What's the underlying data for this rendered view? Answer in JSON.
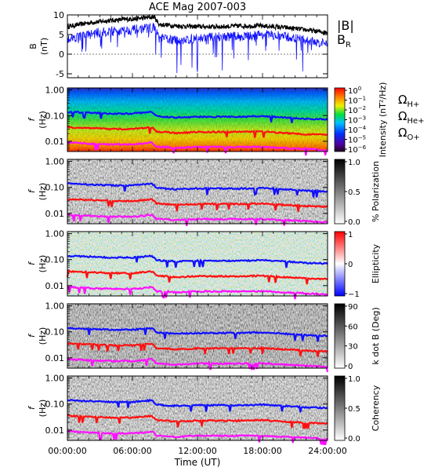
{
  "chart_data": {
    "type": "multi-panel",
    "title": "ACE Mag 2007-003",
    "xlabel": "Time (UT)",
    "x_ticks": [
      "00:00:00",
      "06:00:00",
      "12:00:00",
      "18:00:00",
      "24:00:00"
    ],
    "x_range_hours": [
      0,
      24
    ],
    "panels": [
      {
        "type": "line",
        "ylabel": "B (nT)",
        "ylim": [
          -6,
          10
        ],
        "y_ticks": [
          "10",
          "5",
          "0",
          "-5"
        ],
        "series": [
          {
            "name": "|B|",
            "color": "#000000",
            "x": [
              0,
              1,
              2,
              3,
              4,
              5,
              6,
              7,
              8,
              8.5,
              9,
              10,
              12,
              14,
              16,
              18,
              20,
              22,
              23,
              24
            ],
            "y": [
              7,
              7.5,
              8,
              8.3,
              8.6,
              8.8,
              9,
              9.2,
              9.5,
              7.5,
              7.5,
              7.2,
              7,
              7,
              7.2,
              7.2,
              6.8,
              6.2,
              5.8,
              5.5
            ]
          },
          {
            "name": "B_R",
            "color": "#1010ff",
            "x": [
              0,
              1,
              2,
              3,
              4,
              5,
              6,
              7,
              8,
              8.5,
              9,
              10,
              12,
              14,
              16,
              18,
              20,
              22,
              23,
              24
            ],
            "y": [
              4,
              4.5,
              5,
              5.5,
              5.8,
              6,
              6.2,
              6.5,
              6.8,
              4,
              4,
              3.5,
              4,
              4.5,
              4.5,
              5,
              4.5,
              3.5,
              3,
              2.5
            ]
          }
        ],
        "legend_labels": [
          "|B|",
          "B",
          "R"
        ]
      },
      {
        "type": "heatmap",
        "ylabel": "f (Hz)",
        "y_ticks": [
          "1.00",
          "0.10",
          "0.01"
        ],
        "colorbar_label": "Intensity (nT²/Hz)",
        "colorbar_ticks": [
          "10",
          "10",
          "10",
          "10",
          "10",
          "10",
          "10"
        ],
        "colorbar_exponents": [
          "0",
          "−1",
          "−2",
          "−3",
          "−4",
          "−5",
          "−6"
        ],
        "legend_labels": [
          "Ω",
          "H+",
          "Ω",
          "He+",
          "Ω",
          "O+"
        ]
      },
      {
        "type": "heatmap",
        "ylabel": "f (Hz)",
        "y_ticks": [
          "1.00",
          "0.10",
          "0.01"
        ],
        "colorbar_label": "% Polarization",
        "colorbar_ticks": [
          "1.0",
          "0.5",
          "0.0"
        ]
      },
      {
        "type": "heatmap",
        "ylabel": "f (Hz)",
        "y_ticks": [
          "1.00",
          "0.10",
          "0.01"
        ],
        "colorbar_label": "Ellipticity",
        "colorbar_ticks": [
          "1",
          "0",
          "−1"
        ]
      },
      {
        "type": "heatmap",
        "ylabel": "f (Hz)",
        "y_ticks": [
          "1.00",
          "0.10",
          "0.01"
        ],
        "colorbar_label": "k dot B (Deg)",
        "colorbar_ticks": [
          "90",
          "60",
          "30",
          "0"
        ]
      },
      {
        "type": "heatmap",
        "ylabel": "f (Hz)",
        "y_ticks": [
          "1.00",
          "0.10",
          "0.01"
        ],
        "colorbar_label": "Coherency",
        "colorbar_ticks": [
          "1.0",
          "0.5",
          "0.0"
        ]
      }
    ],
    "gyrofrequency_lines": {
      "x": [
        0,
        2,
        4,
        6,
        7,
        7.8,
        8.2,
        9,
        10,
        12,
        14,
        16,
        18,
        20,
        22,
        24
      ],
      "H+": [
        0.14,
        0.13,
        0.12,
        0.12,
        0.13,
        0.14,
        0.095,
        0.09,
        0.085,
        0.09,
        0.09,
        0.09,
        0.095,
        0.085,
        0.075,
        0.07
      ],
      "He+": [
        0.035,
        0.033,
        0.03,
        0.03,
        0.033,
        0.035,
        0.024,
        0.023,
        0.021,
        0.023,
        0.023,
        0.023,
        0.024,
        0.021,
        0.019,
        0.018
      ],
      "O+": [
        0.009,
        0.008,
        0.0075,
        0.0075,
        0.008,
        0.009,
        0.006,
        0.006,
        0.0055,
        0.006,
        0.006,
        0.006,
        0.006,
        0.0055,
        0.005,
        0.0045
      ],
      "colors": {
        "H+": "#1010ff",
        "He+": "#ff1010",
        "O+": "#ff10ff"
      }
    }
  }
}
